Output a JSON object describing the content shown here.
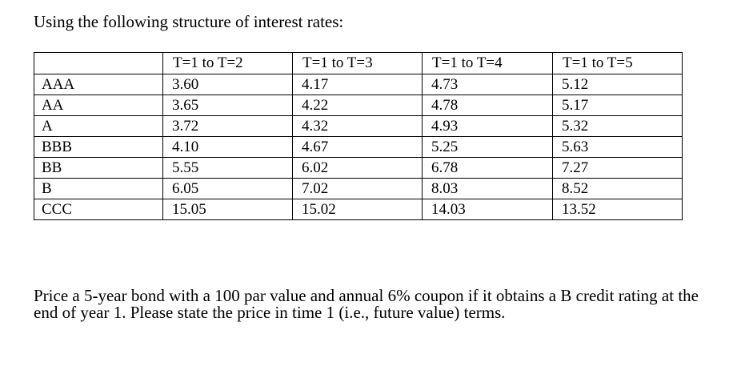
{
  "intro": "Using the following structure of interest rates:",
  "table": {
    "corner": "",
    "columns": [
      "T=1 to T=2",
      "T=1 to T=3",
      "T=1 to T=4",
      "T=1 to T=5"
    ],
    "rows": [
      {
        "rating": "AAA",
        "values": [
          "3.60",
          "4.17",
          "4.73",
          "5.12"
        ]
      },
      {
        "rating": "AA",
        "values": [
          "3.65",
          "4.22",
          "4.78",
          "5.17"
        ]
      },
      {
        "rating": "A",
        "values": [
          "3.72",
          "4.32",
          "4.93",
          "5.32"
        ]
      },
      {
        "rating": "BBB",
        "values": [
          "4.10",
          "4.67",
          "5.25",
          "5.63"
        ]
      },
      {
        "rating": "BB",
        "values": [
          "5.55",
          "6.02",
          "6.78",
          "7.27"
        ]
      },
      {
        "rating": "B",
        "values": [
          "6.05",
          "7.02",
          "8.03",
          "8.52"
        ]
      },
      {
        "rating": "CCC",
        "values": [
          "15.05",
          "15.02",
          "14.03",
          "13.52"
        ]
      }
    ]
  },
  "question": "Price a 5-year bond with a 100 par value and annual 6% coupon if it obtains a B credit rating at the end of year 1. Please state the price in time 1 (i.e., future value) terms."
}
